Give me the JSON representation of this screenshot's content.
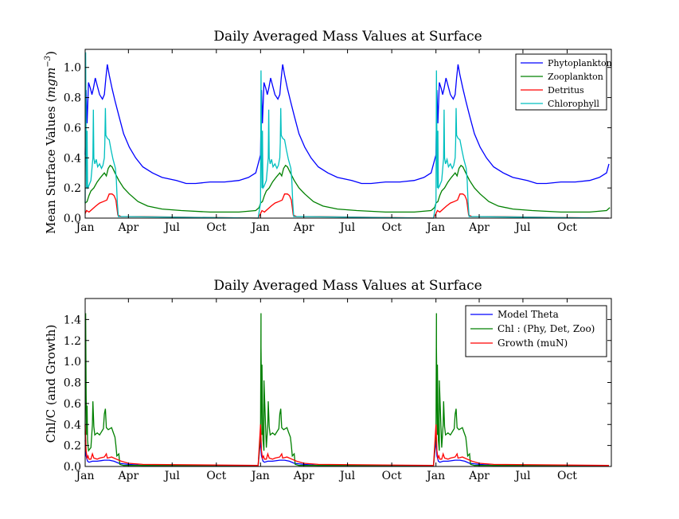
{
  "colors": {
    "Phytoplankton": "#0000ff",
    "Zooplankton": "#008000",
    "Detritus": "#ff0000",
    "Chlorophyll": "#00bfbf"
  },
  "chart_data": [
    {
      "type": "line",
      "title": "Daily Averaged Mass Values at Surface",
      "ylabel_main": "Mean Surface Values (",
      "ylabel_unit": "mgm",
      "ylabel_exp": "−3",
      "ylabel_close": ")",
      "xlim": [
        0,
        1095
      ],
      "ylim": [
        0,
        1.12
      ],
      "xticks": [
        {
          "x": 0,
          "label": "Jan"
        },
        {
          "x": 90,
          "label": "Apr"
        },
        {
          "x": 181,
          "label": "Jul"
        },
        {
          "x": 273,
          "label": "Oct"
        },
        {
          "x": 365,
          "label": "Jan"
        },
        {
          "x": 455,
          "label": "Apr"
        },
        {
          "x": 546,
          "label": "Jul"
        },
        {
          "x": 638,
          "label": "Oct"
        },
        {
          "x": 730,
          "label": "Jan"
        },
        {
          "x": 820,
          "label": "Apr"
        },
        {
          "x": 911,
          "label": "Jul"
        },
        {
          "x": 1003,
          "label": "Oct"
        }
      ],
      "yticks": [
        {
          "y": 0,
          "label": "0.0"
        },
        {
          "y": 0.2,
          "label": "0.2"
        },
        {
          "y": 0.4,
          "label": "0.4"
        },
        {
          "y": 0.6,
          "label": "0.6"
        },
        {
          "y": 0.8,
          "label": "0.8"
        },
        {
          "y": 1.0,
          "label": "1.0"
        }
      ],
      "legend_position": "top-right",
      "series": [
        {
          "name": "Phytoplankton",
          "color": "#0000ff",
          "period_points": [
            [
              0,
              0.42
            ],
            [
              2,
              0.85
            ],
            [
              4,
              0.63
            ],
            [
              7,
              0.9
            ],
            [
              11,
              0.86
            ],
            [
              14,
              0.82
            ],
            [
              17,
              0.86
            ],
            [
              21,
              0.93
            ],
            [
              25,
              0.88
            ],
            [
              30,
              0.82
            ],
            [
              36,
              0.79
            ],
            [
              40,
              0.82
            ],
            [
              43,
              0.93
            ],
            [
              46,
              1.02
            ],
            [
              50,
              0.95
            ],
            [
              56,
              0.86
            ],
            [
              62,
              0.78
            ],
            [
              70,
              0.68
            ],
            [
              80,
              0.56
            ],
            [
              92,
              0.47
            ],
            [
              105,
              0.4
            ],
            [
              120,
              0.34
            ],
            [
              140,
              0.3
            ],
            [
              160,
              0.27
            ],
            [
              190,
              0.25
            ],
            [
              210,
              0.23
            ],
            [
              230,
              0.23
            ],
            [
              260,
              0.24
            ],
            [
              290,
              0.24
            ],
            [
              320,
              0.25
            ],
            [
              340,
              0.27
            ],
            [
              355,
              0.3
            ],
            [
              360,
              0.36
            ]
          ]
        },
        {
          "name": "Zooplankton",
          "color": "#008000",
          "period_points": [
            [
              0,
              0.1
            ],
            [
              4,
              0.11
            ],
            [
              8,
              0.15
            ],
            [
              12,
              0.18
            ],
            [
              18,
              0.2
            ],
            [
              25,
              0.24
            ],
            [
              32,
              0.27
            ],
            [
              40,
              0.3
            ],
            [
              44,
              0.28
            ],
            [
              48,
              0.33
            ],
            [
              52,
              0.35
            ],
            [
              56,
              0.34
            ],
            [
              62,
              0.3
            ],
            [
              70,
              0.25
            ],
            [
              80,
              0.2
            ],
            [
              92,
              0.16
            ],
            [
              110,
              0.11
            ],
            [
              130,
              0.08
            ],
            [
              160,
              0.06
            ],
            [
              200,
              0.05
            ],
            [
              260,
              0.04
            ],
            [
              320,
              0.04
            ],
            [
              355,
              0.05
            ],
            [
              362,
              0.07
            ]
          ]
        },
        {
          "name": "Detritus",
          "color": "#ff0000",
          "period_points": [
            [
              0,
              0.03
            ],
            [
              3,
              0.05
            ],
            [
              8,
              0.04
            ],
            [
              15,
              0.06
            ],
            [
              22,
              0.08
            ],
            [
              30,
              0.1
            ],
            [
              38,
              0.11
            ],
            [
              45,
              0.12
            ],
            [
              50,
              0.16
            ],
            [
              56,
              0.16
            ],
            [
              60,
              0.15
            ],
            [
              64,
              0.12
            ],
            [
              68,
              0.02
            ],
            [
              75,
              0.01
            ],
            [
              120,
              0.01
            ],
            [
              360,
              0.0
            ]
          ]
        },
        {
          "name": "Chlorophyll",
          "color": "#00bfbf",
          "period_points": [
            [
              0,
              0.1
            ],
            [
              1,
              1.1
            ],
            [
              2,
              0.5
            ],
            [
              3,
              0.2
            ],
            [
              4,
              0.58
            ],
            [
              5,
              0.2
            ],
            [
              7,
              0.21
            ],
            [
              12,
              0.25
            ],
            [
              16,
              0.4
            ],
            [
              17,
              0.72
            ],
            [
              18,
              0.4
            ],
            [
              20,
              0.36
            ],
            [
              23,
              0.39
            ],
            [
              26,
              0.34
            ],
            [
              30,
              0.36
            ],
            [
              34,
              0.33
            ],
            [
              37,
              0.35
            ],
            [
              40,
              0.4
            ],
            [
              41,
              0.5
            ],
            [
              42,
              0.73
            ],
            [
              43,
              0.55
            ],
            [
              46,
              0.53
            ],
            [
              50,
              0.52
            ],
            [
              54,
              0.45
            ],
            [
              58,
              0.39
            ],
            [
              63,
              0.33
            ],
            [
              65,
              0.25
            ],
            [
              67,
              0.1
            ],
            [
              69,
              0.01
            ],
            [
              80,
              0.01
            ],
            [
              360,
              0.0
            ]
          ]
        }
      ]
    },
    {
      "type": "line",
      "title": "Daily Averaged Mass Values at Surface",
      "ylabel": "Chl/C (and Growth)",
      "xlim": [
        0,
        1095
      ],
      "ylim": [
        0,
        1.6
      ],
      "xticks": [
        {
          "x": 0,
          "label": "Jan"
        },
        {
          "x": 90,
          "label": "Apr"
        },
        {
          "x": 181,
          "label": "Jul"
        },
        {
          "x": 273,
          "label": "Oct"
        },
        {
          "x": 365,
          "label": "Jan"
        },
        {
          "x": 455,
          "label": "Apr"
        },
        {
          "x": 546,
          "label": "Jul"
        },
        {
          "x": 638,
          "label": "Oct"
        },
        {
          "x": 730,
          "label": "Jan"
        },
        {
          "x": 820,
          "label": "Apr"
        },
        {
          "x": 911,
          "label": "Jul"
        },
        {
          "x": 1003,
          "label": "Oct"
        }
      ],
      "yticks": [
        {
          "y": 0,
          "label": "0.0"
        },
        {
          "y": 0.2,
          "label": "0.2"
        },
        {
          "y": 0.4,
          "label": "0.4"
        },
        {
          "y": 0.6,
          "label": "0.6"
        },
        {
          "y": 0.8,
          "label": "0.8"
        },
        {
          "y": 1.0,
          "label": "1.0"
        },
        {
          "y": 1.2,
          "label": "1.2"
        },
        {
          "y": 1.4,
          "label": "1.4"
        }
      ],
      "legend_position": "top-right",
      "series": [
        {
          "name": "Model Theta",
          "color": "#0000ff",
          "period_points": [
            [
              0,
              0.25
            ],
            [
              2,
              0.1
            ],
            [
              5,
              0.05
            ],
            [
              8,
              0.04
            ],
            [
              15,
              0.05
            ],
            [
              25,
              0.05
            ],
            [
              40,
              0.06
            ],
            [
              50,
              0.06
            ],
            [
              60,
              0.05
            ],
            [
              70,
              0.03
            ],
            [
              90,
              0.02
            ],
            [
              120,
              0.01
            ],
            [
              360,
              0.01
            ]
          ]
        },
        {
          "name": "Chl : (Phy, Det, Zoo)",
          "color": "#008000",
          "period_points": [
            [
              0,
              0.3
            ],
            [
              1,
              1.46
            ],
            [
              2,
              0.7
            ],
            [
              3,
              0.3
            ],
            [
              4,
              0.58
            ],
            [
              5,
              0.25
            ],
            [
              7,
              0.15
            ],
            [
              12,
              0.18
            ],
            [
              15,
              0.4
            ],
            [
              16,
              0.62
            ],
            [
              18,
              0.38
            ],
            [
              20,
              0.3
            ],
            [
              25,
              0.32
            ],
            [
              30,
              0.3
            ],
            [
              38,
              0.36
            ],
            [
              40,
              0.5
            ],
            [
              42,
              0.55
            ],
            [
              44,
              0.37
            ],
            [
              48,
              0.35
            ],
            [
              55,
              0.37
            ],
            [
              58,
              0.33
            ],
            [
              62,
              0.28
            ],
            [
              64,
              0.2
            ],
            [
              66,
              0.1
            ],
            [
              70,
              0.12
            ],
            [
              72,
              0.02
            ],
            [
              80,
              0.01
            ],
            [
              360,
              0.01
            ]
          ]
        },
        {
          "name": "Growth (muN)",
          "color": "#ff0000",
          "period_points": [
            [
              0,
              0.4
            ],
            [
              2,
              0.15
            ],
            [
              4,
              0.08
            ],
            [
              6,
              0.1
            ],
            [
              8,
              0.07
            ],
            [
              12,
              0.07
            ],
            [
              15,
              0.12
            ],
            [
              18,
              0.08
            ],
            [
              25,
              0.07
            ],
            [
              30,
              0.08
            ],
            [
              40,
              0.09
            ],
            [
              44,
              0.12
            ],
            [
              46,
              0.08
            ],
            [
              55,
              0.09
            ],
            [
              65,
              0.07
            ],
            [
              75,
              0.05
            ],
            [
              90,
              0.03
            ],
            [
              120,
              0.02
            ],
            [
              360,
              0.01
            ]
          ]
        }
      ],
      "second_year_overrides": {
        "Chl : (Phy, Det, Zoo)": {
          "peaks": [
            [
              0,
              0.28
            ],
            [
              1,
              1.14
            ],
            [
              3,
              0.97
            ],
            [
              4,
              0.6
            ],
            [
              7,
              0.82
            ]
          ]
        }
      }
    }
  ]
}
